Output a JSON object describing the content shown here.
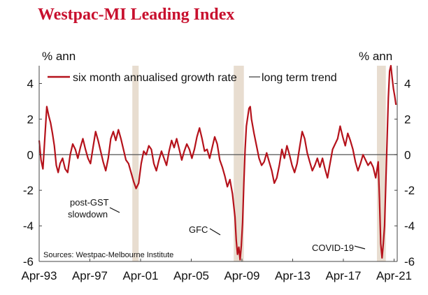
{
  "chart_data": {
    "type": "line",
    "title": "Westpac-MI Leading Index",
    "ylabel_left": "% ann",
    "ylabel_right": "% ann",
    "ylim": [
      -6,
      5
    ],
    "yticks": [
      4,
      2,
      0,
      -2,
      -4,
      -6
    ],
    "xlim": [
      1993.25,
      2021.5
    ],
    "xticks": [
      {
        "label": "Apr-93",
        "x": 1993.25
      },
      {
        "label": "Apr-97",
        "x": 1997.25
      },
      {
        "label": "Apr-01",
        "x": 2001.25
      },
      {
        "label": "Apr-05",
        "x": 2005.25
      },
      {
        "label": "Apr-09",
        "x": 2009.25
      },
      {
        "label": "Apr-13",
        "x": 2013.25
      },
      {
        "label": "Apr-17",
        "x": 2017.25
      },
      {
        "label": "Apr-21",
        "x": 2021.25
      }
    ],
    "legend": {
      "series_label": "six month annualised growth rate",
      "trend_label": "long term trend",
      "placement": "top"
    },
    "series": [
      {
        "name": "six month annualised growth rate",
        "color": "#b5121b",
        "points": [
          [
            1993.25,
            0.8
          ],
          [
            1993.4,
            -0.3
          ],
          [
            1993.55,
            -0.8
          ],
          [
            1993.7,
            1.0
          ],
          [
            1993.85,
            2.7
          ],
          [
            1994.0,
            2.2
          ],
          [
            1994.15,
            1.8
          ],
          [
            1994.3,
            1.2
          ],
          [
            1994.45,
            0.5
          ],
          [
            1994.6,
            -0.6
          ],
          [
            1994.75,
            -1.0
          ],
          [
            1994.9,
            -0.5
          ],
          [
            1995.1,
            -0.2
          ],
          [
            1995.3,
            -0.8
          ],
          [
            1995.5,
            -1.0
          ],
          [
            1995.7,
            0.0
          ],
          [
            1995.9,
            0.6
          ],
          [
            1996.1,
            0.3
          ],
          [
            1996.3,
            -0.2
          ],
          [
            1996.5,
            0.4
          ],
          [
            1996.7,
            0.9
          ],
          [
            1996.9,
            0.3
          ],
          [
            1997.1,
            -0.2
          ],
          [
            1997.3,
            -0.5
          ],
          [
            1997.5,
            0.4
          ],
          [
            1997.7,
            1.3
          ],
          [
            1997.9,
            0.8
          ],
          [
            1998.1,
            0.2
          ],
          [
            1998.3,
            -0.4
          ],
          [
            1998.5,
            -0.9
          ],
          [
            1998.7,
            -0.2
          ],
          [
            1998.9,
            0.9
          ],
          [
            1999.1,
            1.3
          ],
          [
            1999.3,
            0.8
          ],
          [
            1999.5,
            1.4
          ],
          [
            1999.7,
            0.9
          ],
          [
            1999.9,
            0.3
          ],
          [
            2000.1,
            -0.3
          ],
          [
            2000.3,
            -0.5
          ],
          [
            2000.5,
            -1.0
          ],
          [
            2000.7,
            -1.5
          ],
          [
            2000.9,
            -1.9
          ],
          [
            2001.1,
            -1.6
          ],
          [
            2001.3,
            -0.5
          ],
          [
            2001.5,
            0.2
          ],
          [
            2001.7,
            0.0
          ],
          [
            2001.9,
            0.5
          ],
          [
            2002.1,
            0.3
          ],
          [
            2002.3,
            -0.5
          ],
          [
            2002.5,
            -0.9
          ],
          [
            2002.7,
            -0.3
          ],
          [
            2002.9,
            0.2
          ],
          [
            2003.1,
            -0.2
          ],
          [
            2003.3,
            -0.6
          ],
          [
            2003.5,
            0.2
          ],
          [
            2003.7,
            0.8
          ],
          [
            2003.9,
            0.4
          ],
          [
            2004.1,
            0.9
          ],
          [
            2004.3,
            0.3
          ],
          [
            2004.5,
            -0.3
          ],
          [
            2004.7,
            0.2
          ],
          [
            2004.9,
            0.6
          ],
          [
            2005.1,
            0.3
          ],
          [
            2005.3,
            -0.2
          ],
          [
            2005.5,
            0.3
          ],
          [
            2005.7,
            1.0
          ],
          [
            2005.9,
            1.5
          ],
          [
            2006.1,
            0.9
          ],
          [
            2006.3,
            0.2
          ],
          [
            2006.5,
            0.3
          ],
          [
            2006.7,
            -0.2
          ],
          [
            2006.9,
            0.4
          ],
          [
            2007.1,
            1.0
          ],
          [
            2007.3,
            0.6
          ],
          [
            2007.5,
            -0.3
          ],
          [
            2007.7,
            -0.7
          ],
          [
            2007.9,
            -1.2
          ],
          [
            2008.1,
            -1.8
          ],
          [
            2008.3,
            -1.4
          ],
          [
            2008.5,
            -2.2
          ],
          [
            2008.7,
            -3.5
          ],
          [
            2008.8,
            -4.8
          ],
          [
            2008.9,
            -5.6
          ],
          [
            2009.0,
            -5.2
          ],
          [
            2009.1,
            -5.9
          ],
          [
            2009.2,
            -5.1
          ],
          [
            2009.3,
            -3.8
          ],
          [
            2009.4,
            -1.6
          ],
          [
            2009.5,
            0.3
          ],
          [
            2009.6,
            1.6
          ],
          [
            2009.8,
            2.6
          ],
          [
            2009.9,
            2.7
          ],
          [
            2010.0,
            2.0
          ],
          [
            2010.2,
            1.2
          ],
          [
            2010.4,
            0.5
          ],
          [
            2010.6,
            -0.2
          ],
          [
            2010.8,
            -0.6
          ],
          [
            2011.0,
            -0.4
          ],
          [
            2011.2,
            0.1
          ],
          [
            2011.4,
            -0.4
          ],
          [
            2011.6,
            -0.9
          ],
          [
            2011.8,
            -1.6
          ],
          [
            2012.0,
            -1.3
          ],
          [
            2012.2,
            -0.6
          ],
          [
            2012.4,
            0.3
          ],
          [
            2012.6,
            -0.2
          ],
          [
            2012.8,
            0.5
          ],
          [
            2013.0,
            0.0
          ],
          [
            2013.2,
            -0.6
          ],
          [
            2013.4,
            -1.0
          ],
          [
            2013.6,
            -0.5
          ],
          [
            2013.8,
            0.4
          ],
          [
            2014.0,
            1.3
          ],
          [
            2014.2,
            0.9
          ],
          [
            2014.4,
            0.1
          ],
          [
            2014.6,
            -0.4
          ],
          [
            2014.8,
            -0.9
          ],
          [
            2015.0,
            -0.6
          ],
          [
            2015.2,
            -0.2
          ],
          [
            2015.4,
            -0.7
          ],
          [
            2015.6,
            -0.2
          ],
          [
            2015.8,
            -0.8
          ],
          [
            2016.0,
            -1.3
          ],
          [
            2016.2,
            -0.5
          ],
          [
            2016.4,
            0.3
          ],
          [
            2016.6,
            0.6
          ],
          [
            2016.8,
            0.9
          ],
          [
            2017.0,
            1.6
          ],
          [
            2017.2,
            1.0
          ],
          [
            2017.4,
            0.5
          ],
          [
            2017.6,
            1.2
          ],
          [
            2017.8,
            0.8
          ],
          [
            2018.0,
            0.3
          ],
          [
            2018.2,
            -0.4
          ],
          [
            2018.4,
            -0.9
          ],
          [
            2018.6,
            -0.5
          ],
          [
            2018.8,
            0.0
          ],
          [
            2019.0,
            -0.3
          ],
          [
            2019.2,
            -0.6
          ],
          [
            2019.4,
            -0.4
          ],
          [
            2019.6,
            -0.7
          ],
          [
            2019.8,
            -1.3
          ],
          [
            2020.0,
            -0.4
          ],
          [
            2020.1,
            -2.5
          ],
          [
            2020.2,
            -5.0
          ],
          [
            2020.3,
            -5.8
          ],
          [
            2020.4,
            -5.0
          ],
          [
            2020.5,
            -4.0
          ],
          [
            2020.6,
            -1.6
          ],
          [
            2020.7,
            0.8
          ],
          [
            2020.8,
            3.2
          ],
          [
            2020.9,
            4.7
          ],
          [
            2021.0,
            5.0
          ],
          [
            2021.1,
            4.3
          ],
          [
            2021.2,
            3.7
          ],
          [
            2021.3,
            3.3
          ],
          [
            2021.4,
            2.8
          ]
        ]
      },
      {
        "name": "long term trend",
        "color": "#555555",
        "points": [
          [
            1993.25,
            0
          ],
          [
            2021.5,
            0
          ]
        ]
      }
    ],
    "recession_bands": [
      {
        "from": 2000.6,
        "to": 2001.1
      },
      {
        "from": 2008.6,
        "to": 2009.4
      },
      {
        "from": 2019.9,
        "to": 2020.6
      }
    ],
    "band_color": "#e8ddd0",
    "annotations": [
      {
        "text": "post-GST",
        "line2": "slowdown",
        "x": 1998.3,
        "y": -3.2
      },
      {
        "text": "GFC",
        "x": 2006.9,
        "y": -4.3
      },
      {
        "text": "COVID-19",
        "x": 2016.3,
        "y": -5.2
      }
    ],
    "source": "Sources: Westpac-Melbourne Institute",
    "grid": false
  }
}
